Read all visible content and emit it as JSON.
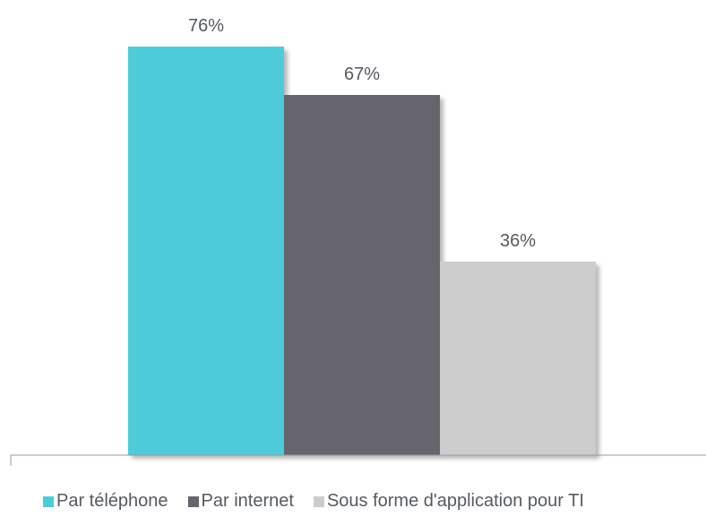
{
  "chart_data": {
    "type": "bar",
    "categories": [
      "Par téléphone",
      "Par internet",
      "Sous forme d'application pour TI"
    ],
    "values": [
      76,
      67,
      36
    ],
    "data_labels": [
      "76%",
      "67%",
      "36%"
    ],
    "colors": [
      "#4ecbd9",
      "#66656e",
      "#cccccc"
    ],
    "ylim": [
      0,
      100
    ],
    "grid": false,
    "legend_position": "bottom",
    "title": "",
    "xlabel": "",
    "ylabel": ""
  },
  "legend": {
    "items": [
      {
        "label": "Par téléphone",
        "color": "#4ecbd9"
      },
      {
        "label": "Par internet",
        "color": "#66656e"
      },
      {
        "label": "Sous forme d'application pour TI",
        "color": "#cccccc"
      }
    ]
  }
}
